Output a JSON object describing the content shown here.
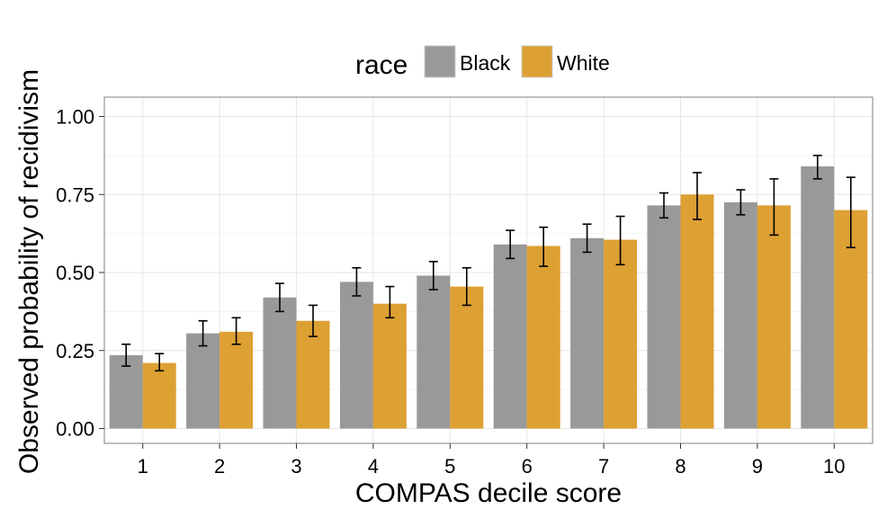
{
  "chart_data": {
    "type": "bar",
    "title": "",
    "xlabel": "COMPAS decile score",
    "ylabel": "Observed probability of recidivism",
    "ylim": [
      0,
      1.05
    ],
    "yticks": [
      "0.00",
      "0.25",
      "0.50",
      "0.75",
      "1.00"
    ],
    "ytick_values": [
      0,
      0.25,
      0.5,
      0.75,
      1.0
    ],
    "categories": [
      "1",
      "2",
      "3",
      "4",
      "5",
      "6",
      "7",
      "8",
      "9",
      "10"
    ],
    "legend": {
      "title": "race",
      "position": "top"
    },
    "grid": true,
    "series": [
      {
        "name": "Black",
        "color": "#999999",
        "values": [
          0.235,
          0.305,
          0.42,
          0.47,
          0.49,
          0.59,
          0.61,
          0.715,
          0.725,
          0.84
        ],
        "err_low": [
          0.2,
          0.265,
          0.375,
          0.425,
          0.445,
          0.545,
          0.565,
          0.675,
          0.685,
          0.8
        ],
        "err_high": [
          0.27,
          0.345,
          0.465,
          0.515,
          0.535,
          0.635,
          0.655,
          0.755,
          0.765,
          0.875
        ]
      },
      {
        "name": "White",
        "color": "#DDA033",
        "values": [
          0.21,
          0.31,
          0.345,
          0.4,
          0.455,
          0.585,
          0.605,
          0.75,
          0.715,
          0.7
        ],
        "err_low": [
          0.185,
          0.27,
          0.295,
          0.355,
          0.395,
          0.52,
          0.525,
          0.67,
          0.62,
          0.58
        ],
        "err_high": [
          0.24,
          0.355,
          0.395,
          0.455,
          0.515,
          0.645,
          0.68,
          0.82,
          0.8,
          0.805
        ]
      }
    ]
  }
}
